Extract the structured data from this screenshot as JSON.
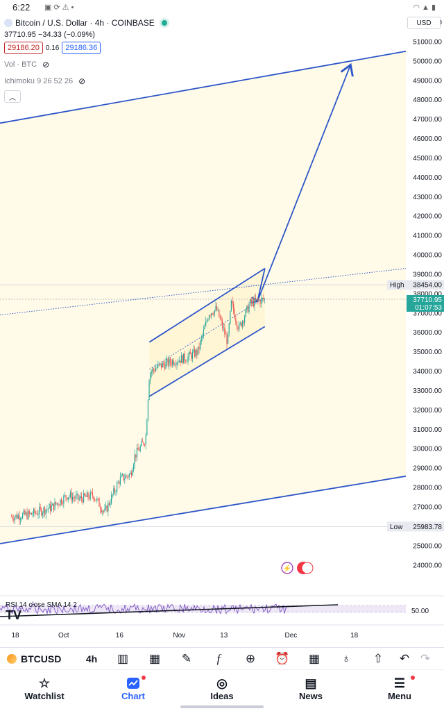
{
  "status_bar": {
    "time": "6:22",
    "icons": [
      "image-icon",
      "sync-icon",
      "alert-icon",
      "dot-icon"
    ],
    "right_icons": [
      "wifi-icon",
      "signal-icon",
      "battery-icon"
    ]
  },
  "chart_header": {
    "title": "Bitcoin / U.S. Dollar · 4h · COINBASE",
    "ohlc_line": "37710.95  −34.33 (−0.09%)",
    "sell_price": "29186.20",
    "spread": "0.16",
    "buy_price": "29186.36",
    "indicator_vol": "Vol · BTC",
    "indicator_ichimoku": "Ichimoku 9 26 52 26",
    "currency": "USD"
  },
  "colors": {
    "accent": "#2962ff",
    "up": "#26a69a",
    "down": "#ef5350",
    "channel_fill": "#fffbe8",
    "drawing_line": "#2c55c9",
    "rsi_line": "#7e57c2"
  },
  "price_markers": {
    "high_label": "High",
    "high_value": "38454.00",
    "last_value": "37710.95",
    "countdown": "01:07:53",
    "low_label": "Low",
    "low_value": "25983.78"
  },
  "rsi": {
    "label": "RSI 14 close SMA 14 2",
    "level": "50.00"
  },
  "toolbar": {
    "symbol": "BTCUSD",
    "interval": "4h",
    "tools": [
      "candles-icon",
      "calendar-add-icon",
      "pen-icon",
      "fx-icon",
      "plus-circle-icon",
      "alarm-icon",
      "grid-icon",
      "lightbulb-icon",
      "share-icon",
      "undo-icon",
      "redo-icon"
    ]
  },
  "bottom_nav": [
    {
      "label": "Watchlist",
      "icon": "star-icon"
    },
    {
      "label": "Chart",
      "icon": "chart-icon"
    },
    {
      "label": "Ideas",
      "icon": "ideas-icon"
    },
    {
      "label": "News",
      "icon": "news-icon"
    },
    {
      "label": "Menu",
      "icon": "menu-icon"
    }
  ],
  "chart_data": {
    "type": "candlestick",
    "title": "Bitcoin / U.S. Dollar · 4h · COINBASE",
    "ylim": [
      23500,
      52500
    ],
    "y_ticks": [
      24000,
      25000,
      26000,
      27000,
      28000,
      29000,
      30000,
      31000,
      32000,
      33000,
      34000,
      35000,
      36000,
      37000,
      38000,
      39000,
      40000,
      41000,
      42000,
      43000,
      44000,
      45000,
      46000,
      47000,
      48000,
      49000,
      50000,
      51000,
      52000
    ],
    "x_ticks": [
      "18",
      "Oct",
      "16",
      "Nov",
      "13",
      "Dec",
      "18"
    ],
    "close_path": [
      {
        "date": "Sep 17",
        "close": 26500
      },
      {
        "date": "Sep 22",
        "close": 26600
      },
      {
        "date": "Sep 28",
        "close": 27000
      },
      {
        "date": "Oct 2",
        "close": 27600
      },
      {
        "date": "Oct 5",
        "close": 27400
      },
      {
        "date": "Oct 9",
        "close": 27600
      },
      {
        "date": "Oct 12",
        "close": 26700
      },
      {
        "date": "Oct 16",
        "close": 28400
      },
      {
        "date": "Oct 19",
        "close": 28700
      },
      {
        "date": "Oct 20",
        "close": 29600
      },
      {
        "date": "Oct 23",
        "close": 30500
      },
      {
        "date": "Oct 24",
        "close": 33900
      },
      {
        "date": "Oct 26",
        "close": 34200
      },
      {
        "date": "Oct 30",
        "close": 34500
      },
      {
        "date": "Nov 3",
        "close": 34700
      },
      {
        "date": "Nov 6",
        "close": 35000
      },
      {
        "date": "Nov 9",
        "close": 37000
      },
      {
        "date": "Nov 11",
        "close": 37200
      },
      {
        "date": "Nov 14",
        "close": 35500
      },
      {
        "date": "Nov 15",
        "close": 37500
      },
      {
        "date": "Nov 17",
        "close": 36200
      },
      {
        "date": "Nov 20",
        "close": 37500
      },
      {
        "date": "Nov 22",
        "close": 37600
      },
      {
        "date": "Nov 24",
        "close": 37710.95
      }
    ],
    "high": 38454.0,
    "low": 25983.78,
    "last": 37710.95,
    "rsi_level": 50.0,
    "drawings": [
      {
        "type": "rising-channel-upper",
        "from": {
          "date": "Oct 24",
          "price": 35500
        },
        "to": {
          "date": "Nov 24",
          "price": 39300
        }
      },
      {
        "type": "rising-channel-lower",
        "from": {
          "date": "Oct 24",
          "price": 32700
        },
        "to": {
          "date": "Nov 24",
          "price": 36300
        }
      },
      {
        "type": "wide-channel-upper",
        "from": {
          "date": "Sep 17",
          "price": 46900
        },
        "to": {
          "date": "Dec 23",
          "price": 50200
        }
      },
      {
        "type": "wide-channel-lower",
        "from": {
          "date": "Sep 17",
          "price": 25200
        },
        "to": {
          "date": "Dec 23",
          "price": 28300
        }
      },
      {
        "type": "projection-arrow",
        "from": {
          "date": "Nov 22",
          "price": 37600
        },
        "to": {
          "date": "Dec 17",
          "price": 49800
        }
      }
    ]
  }
}
